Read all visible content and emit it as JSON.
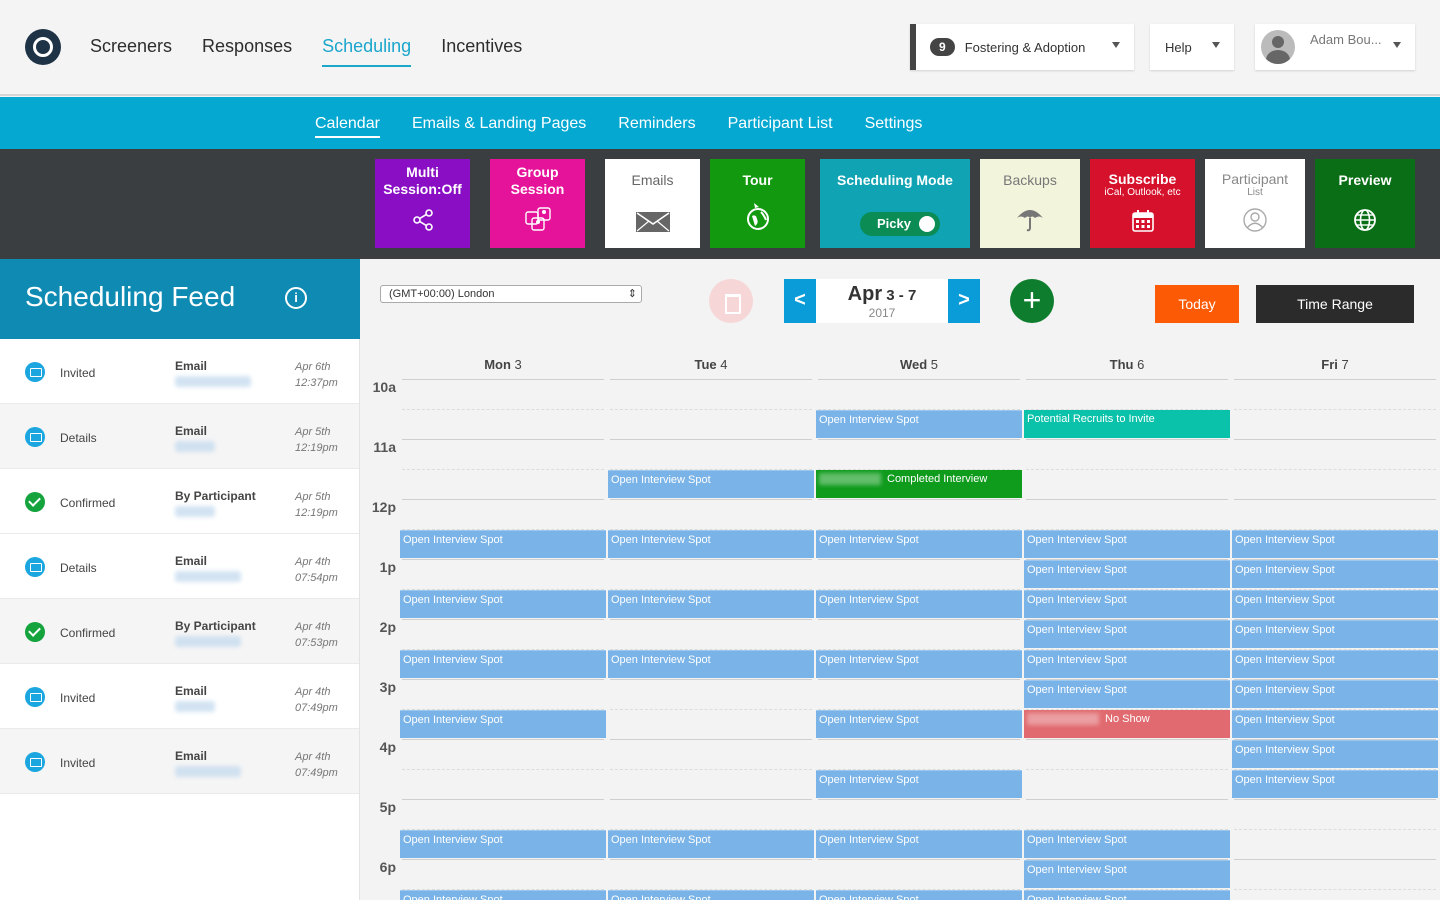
{
  "main_nav": [
    "Screeners",
    "Responses",
    "Scheduling",
    "Incentives"
  ],
  "main_nav_active": "Scheduling",
  "project": {
    "count": "9",
    "name": "Fostering & Adoption"
  },
  "help_label": "Help",
  "user_name": "Adam Bou...",
  "sub_nav": [
    "Calendar",
    "Emails & Landing Pages",
    "Reminders",
    "Participant List",
    "Settings"
  ],
  "tiles": {
    "multi": {
      "label": "Multi Session:Off",
      "color": "#8a0fc4",
      "icon": "share-nodes-icon"
    },
    "group": {
      "label": "Group Session",
      "color": "#e5139a",
      "icon": "group-people-icon"
    },
    "emails": {
      "label": "Emails",
      "color": "#ffffff",
      "icon": "envelope-icon"
    },
    "tour": {
      "label": "Tour",
      "color": "#12990f",
      "icon": "globe-plane-icon"
    },
    "mode": {
      "label": "Scheduling Mode",
      "toggle_label": "Picky",
      "color": "#10a3b3",
      "icon": "toggle-icon"
    },
    "backups": {
      "label": "Backups",
      "color": "#f2f5dc",
      "icon": "umbrella-icon"
    },
    "subscribe": {
      "label": "Subscribe",
      "sub": "iCal, Outlook, etc",
      "color": "#d6112c",
      "icon": "calendar-icon"
    },
    "participant": {
      "label": "Participant",
      "sub": "List",
      "color": "#ffffff",
      "icon": "person-circle-icon"
    },
    "preview": {
      "label": "Preview",
      "color": "#0a6e16",
      "icon": "globe-icon"
    }
  },
  "feed": {
    "title": "Scheduling Feed",
    "rows": [
      {
        "icon": "mail",
        "status": "Invited",
        "type": "Email",
        "date": "Apr 6th",
        "time": "12:37pm"
      },
      {
        "icon": "mail",
        "status": "Details",
        "type": "Email",
        "date": "Apr 5th",
        "time": "12:19pm"
      },
      {
        "icon": "check",
        "status": "Confirmed",
        "type": "By Participant",
        "date": "Apr 5th",
        "time": "12:19pm"
      },
      {
        "icon": "mail",
        "status": "Details",
        "type": "Email",
        "date": "Apr 4th",
        "time": "07:54pm"
      },
      {
        "icon": "check",
        "status": "Confirmed",
        "type": "By Participant",
        "date": "Apr 4th",
        "time": "07:53pm"
      },
      {
        "icon": "mail",
        "status": "Invited",
        "type": "Email",
        "date": "Apr 4th",
        "time": "07:49pm"
      },
      {
        "icon": "mail",
        "status": "Invited",
        "type": "Email",
        "date": "Apr 4th",
        "time": "07:49pm"
      }
    ]
  },
  "calendar": {
    "timezone": "(GMT+00:00) London",
    "range_month": "Apr",
    "range_days": "3 - 7",
    "range_year": "2017",
    "today_label": "Today",
    "time_range_label": "Time Range",
    "days": [
      {
        "name": "Mon",
        "num": "3"
      },
      {
        "name": "Tue",
        "num": "4"
      },
      {
        "name": "Wed",
        "num": "5"
      },
      {
        "name": "Thu",
        "num": "6"
      },
      {
        "name": "Fri",
        "num": "7"
      }
    ],
    "hours": [
      "10a",
      "11a",
      "12p",
      "1p",
      "2p",
      "3p",
      "4p",
      "5p",
      "6p"
    ],
    "events": [
      {
        "day": 2,
        "start": "10:30",
        "label": "Open Interview Spot",
        "kind": "open"
      },
      {
        "day": 3,
        "start": "10:30",
        "label": "Potential Recruits to Invite",
        "kind": "teal"
      },
      {
        "day": 1,
        "start": "11:30",
        "label": "Open Interview Spot",
        "kind": "open"
      },
      {
        "day": 2,
        "start": "11:30",
        "label": "Completed Interview",
        "kind": "done",
        "blurred": true
      },
      {
        "day": 0,
        "start": "12:30",
        "label": "Open Interview Spot",
        "kind": "open"
      },
      {
        "day": 1,
        "start": "12:30",
        "label": "Open Interview Spot",
        "kind": "open"
      },
      {
        "day": 2,
        "start": "12:30",
        "label": "Open Interview Spot",
        "kind": "open"
      },
      {
        "day": 3,
        "start": "12:30",
        "label": "Open Interview Spot",
        "kind": "open"
      },
      {
        "day": 4,
        "start": "12:30",
        "label": "Open Interview Spot",
        "kind": "open"
      },
      {
        "day": 3,
        "start": "13:00",
        "label": "Open Interview Spot",
        "kind": "open"
      },
      {
        "day": 4,
        "start": "13:00",
        "label": "Open Interview Spot",
        "kind": "open"
      },
      {
        "day": 0,
        "start": "13:30",
        "label": "Open Interview Spot",
        "kind": "open"
      },
      {
        "day": 1,
        "start": "13:30",
        "label": "Open Interview Spot",
        "kind": "open"
      },
      {
        "day": 2,
        "start": "13:30",
        "label": "Open Interview Spot",
        "kind": "open"
      },
      {
        "day": 3,
        "start": "13:30",
        "label": "Open Interview Spot",
        "kind": "open"
      },
      {
        "day": 4,
        "start": "13:30",
        "label": "Open Interview Spot",
        "kind": "open"
      },
      {
        "day": 3,
        "start": "14:00",
        "label": "Open Interview Spot",
        "kind": "open"
      },
      {
        "day": 4,
        "start": "14:00",
        "label": "Open Interview Spot",
        "kind": "open"
      },
      {
        "day": 0,
        "start": "14:30",
        "label": "Open Interview Spot",
        "kind": "open"
      },
      {
        "day": 1,
        "start": "14:30",
        "label": "Open Interview Spot",
        "kind": "open"
      },
      {
        "day": 2,
        "start": "14:30",
        "label": "Open Interview Spot",
        "kind": "open"
      },
      {
        "day": 3,
        "start": "14:30",
        "label": "Open Interview Spot",
        "kind": "open"
      },
      {
        "day": 4,
        "start": "14:30",
        "label": "Open Interview Spot",
        "kind": "open"
      },
      {
        "day": 3,
        "start": "15:00",
        "label": "Open Interview Spot",
        "kind": "open"
      },
      {
        "day": 4,
        "start": "15:00",
        "label": "Open Interview Spot",
        "kind": "open"
      },
      {
        "day": 0,
        "start": "15:30",
        "label": "Open Interview Spot",
        "kind": "open"
      },
      {
        "day": 2,
        "start": "15:30",
        "label": "Open Interview Spot",
        "kind": "open"
      },
      {
        "day": 3,
        "start": "15:30",
        "label": "No Show",
        "kind": "noshow",
        "blurred": true
      },
      {
        "day": 4,
        "start": "15:30",
        "label": "Open Interview Spot",
        "kind": "open"
      },
      {
        "day": 4,
        "start": "16:00",
        "label": "Open Interview Spot",
        "kind": "open"
      },
      {
        "day": 2,
        "start": "16:30",
        "label": "Open Interview Spot",
        "kind": "open"
      },
      {
        "day": 4,
        "start": "16:30",
        "label": "Open Interview Spot",
        "kind": "open"
      },
      {
        "day": 0,
        "start": "17:30",
        "label": "Open Interview Spot",
        "kind": "open"
      },
      {
        "day": 1,
        "start": "17:30",
        "label": "Open Interview Spot",
        "kind": "open"
      },
      {
        "day": 2,
        "start": "17:30",
        "label": "Open Interview Spot",
        "kind": "open"
      },
      {
        "day": 3,
        "start": "17:30",
        "label": "Open Interview Spot",
        "kind": "open"
      },
      {
        "day": 3,
        "start": "18:00",
        "label": "Open Interview Spot",
        "kind": "open"
      },
      {
        "day": 0,
        "start": "18:30",
        "label": "Open Interview Spot",
        "kind": "open"
      },
      {
        "day": 1,
        "start": "18:30",
        "label": "Open Interview Spot",
        "kind": "open"
      },
      {
        "day": 2,
        "start": "18:30",
        "label": "Open Interview Spot",
        "kind": "open"
      },
      {
        "day": 3,
        "start": "18:30",
        "label": "Open Interview Spot",
        "kind": "open"
      }
    ]
  }
}
